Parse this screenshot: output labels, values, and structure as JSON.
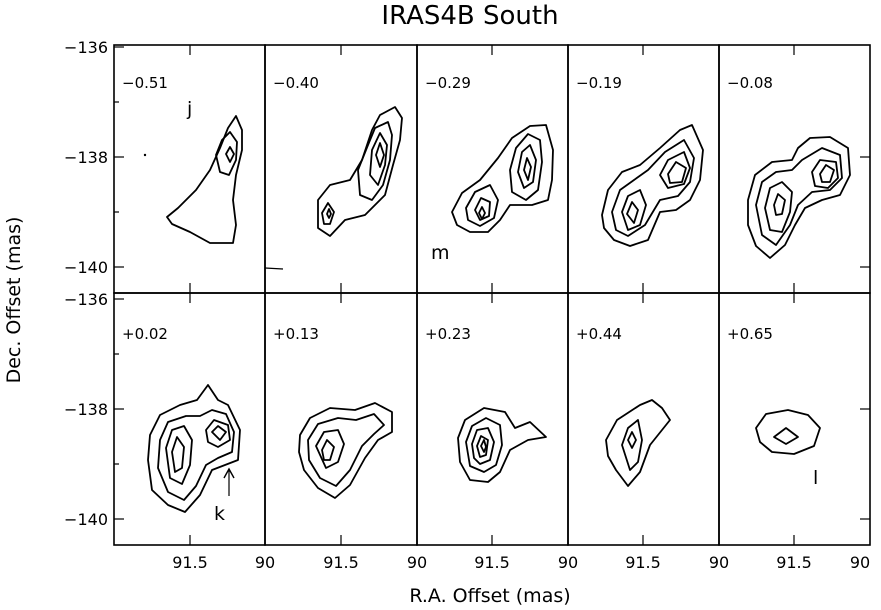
{
  "figure": {
    "title": "IRAS4B South",
    "xlabel": "R.A. Offset (mas)",
    "ylabel": "Dec. Offset (mas)"
  },
  "axes": {
    "x_tick_labels": [
      "91.5",
      "90"
    ],
    "y_tick_labels_top": [
      "−136",
      "−138",
      "−140"
    ],
    "y_tick_labels_bottom": [
      "−136",
      "−138",
      "−140"
    ]
  },
  "panels": [
    {
      "velocity": "−0.51"
    },
    {
      "velocity": "−0.40"
    },
    {
      "velocity": "−0.29"
    },
    {
      "velocity": "−0.19"
    },
    {
      "velocity": "−0.08"
    },
    {
      "velocity": "+0.02"
    },
    {
      "velocity": "+0.13"
    },
    {
      "velocity": "+0.23"
    },
    {
      "velocity": "+0.44"
    },
    {
      "velocity": "+0.65"
    }
  ],
  "annotations": {
    "j": "j",
    "m": "m",
    "k": "k",
    "l": "l"
  }
}
